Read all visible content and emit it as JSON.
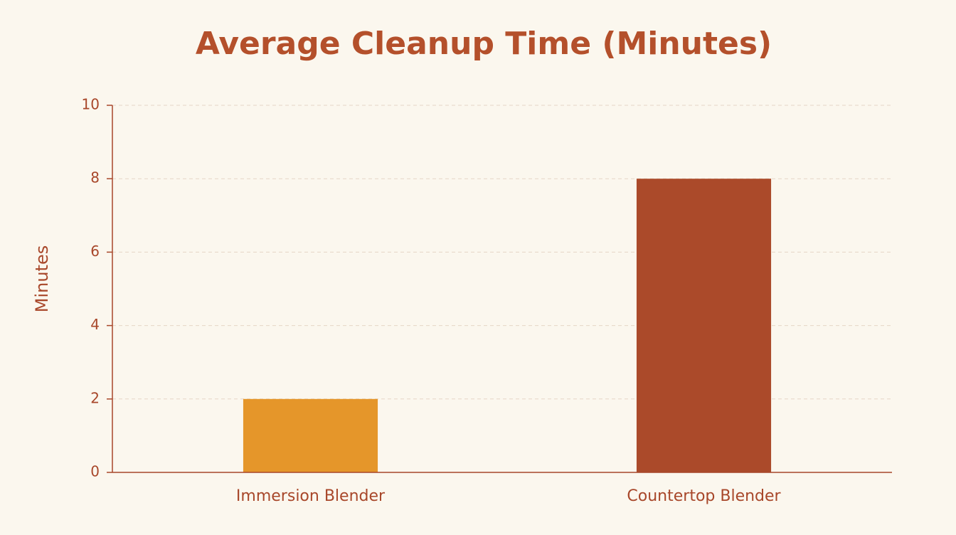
{
  "chart_data": {
    "type": "bar",
    "title": "Average Cleanup Time (Minutes)",
    "y_label": "Minutes",
    "categories": [
      "Immersion Blender",
      "Countertop Blender"
    ],
    "values": [
      2,
      8
    ],
    "colors": [
      "#e5962a",
      "#ab4a2a"
    ],
    "ylim": [
      0,
      10
    ],
    "yticks": [
      0,
      2,
      4,
      6,
      8,
      10
    ],
    "grid": true
  }
}
